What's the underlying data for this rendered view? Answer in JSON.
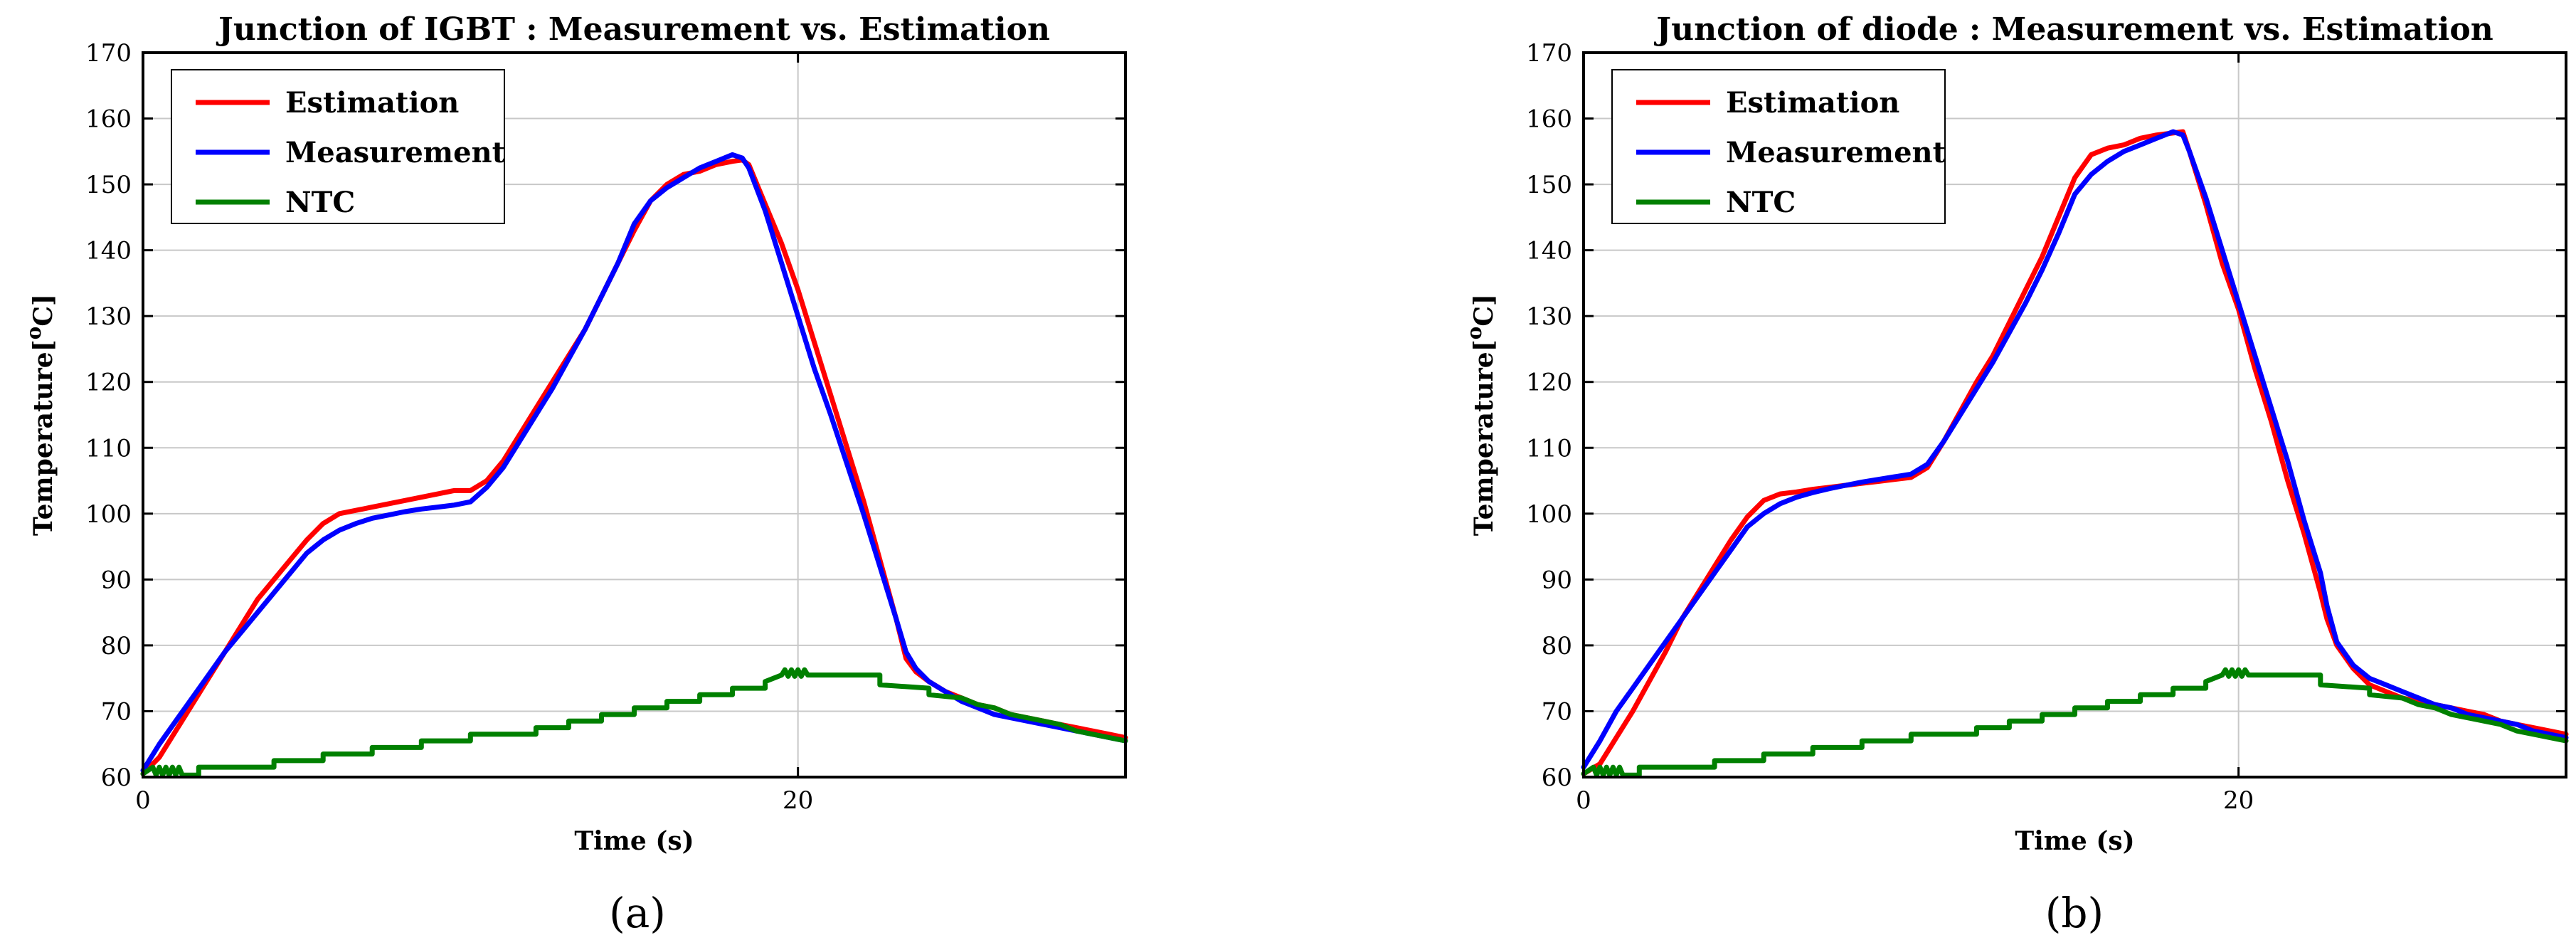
{
  "chart_data": [
    {
      "type": "line",
      "caption": "(a)",
      "title": "Junction of IGBT : Measurement vs. Estimation",
      "xlabel": "Time (s)",
      "ylabel": "Temperature[",
      "ylabel_sup": "o",
      "ylabel_unit": "C]",
      "xlim": [
        0,
        30
      ],
      "ylim": [
        60,
        170
      ],
      "xticks": [
        0,
        20
      ],
      "yticks": [
        60,
        70,
        80,
        90,
        100,
        110,
        120,
        130,
        140,
        150,
        160,
        170
      ],
      "grid": true,
      "legend_position": "top-left",
      "series": [
        {
          "name": "Estimation",
          "color": "#ff0000",
          "x": [
            0,
            0.5,
            1,
            1.5,
            2,
            2.5,
            3,
            3.5,
            4,
            4.5,
            5,
            5.5,
            6,
            6.5,
            7,
            7.5,
            8,
            8.5,
            9,
            9.5,
            10,
            10.5,
            11,
            11.5,
            12,
            12.5,
            13,
            13.5,
            14,
            14.5,
            15,
            15.5,
            16,
            16.5,
            17,
            17.5,
            18,
            18.3,
            18.5,
            19,
            19.5,
            20,
            20.5,
            21,
            21.5,
            22,
            22.5,
            23,
            23.3,
            23.6,
            24,
            24.5,
            25,
            25.5,
            26,
            26.5,
            27,
            27.5,
            28,
            28.5,
            29,
            29.5,
            30
          ],
          "y": [
            60.5,
            63,
            67,
            71,
            75,
            79,
            83,
            87,
            90,
            93,
            96,
            98.5,
            100,
            100.5,
            101,
            101.5,
            102,
            102.5,
            103,
            103.5,
            103.5,
            105,
            108,
            112,
            116,
            120,
            124,
            128,
            133,
            138,
            143,
            147.5,
            150,
            151.5,
            152,
            153,
            153.5,
            153.7,
            153,
            147,
            141,
            134,
            126,
            118,
            110,
            102,
            93,
            84,
            78,
            76,
            74.5,
            73,
            72,
            71,
            70.5,
            69.5,
            69,
            68.5,
            68,
            67.5,
            67,
            66.5,
            66
          ]
        },
        {
          "name": "Measurement",
          "color": "#0000ff",
          "x": [
            0,
            0.5,
            1,
            1.5,
            2,
            2.5,
            3,
            3.5,
            4,
            4.5,
            5,
            5.5,
            6,
            6.5,
            7,
            7.5,
            8,
            8.5,
            9,
            9.5,
            10,
            10.5,
            11,
            11.5,
            12,
            12.5,
            13,
            13.5,
            14,
            14.5,
            15,
            15.5,
            16,
            16.5,
            17,
            17.5,
            18,
            18.3,
            18.5,
            19,
            19.5,
            20,
            20.5,
            21,
            21.5,
            22,
            22.5,
            23,
            23.3,
            23.6,
            24,
            24.5,
            25,
            25.5,
            26,
            26.5,
            27,
            27.5,
            28,
            28.5,
            29,
            29.5,
            30
          ],
          "y": [
            61,
            65,
            68.5,
            72,
            75.5,
            79,
            82,
            85,
            88,
            91,
            94,
            96,
            97.5,
            98.5,
            99.3,
            99.8,
            100.3,
            100.7,
            101,
            101.3,
            101.8,
            104,
            107,
            111,
            115,
            119,
            123.5,
            128,
            133,
            138,
            144,
            147.5,
            149.5,
            151,
            152.5,
            153.5,
            154.5,
            154,
            152.5,
            146,
            138,
            130,
            122,
            115,
            107.5,
            100,
            92,
            84,
            79,
            76.5,
            74.5,
            73,
            71.5,
            70.5,
            69.5,
            69,
            68.5,
            68,
            67.5,
            67,
            66.5,
            66,
            65.5
          ]
        },
        {
          "name": "NTC",
          "color": "#008000",
          "x": [
            0,
            0.3,
            0.4,
            0.5,
            0.6,
            0.7,
            0.8,
            0.9,
            1,
            1.1,
            1.2,
            1.7,
            1.7,
            4,
            4,
            5.5,
            5.5,
            7,
            7,
            8.5,
            8.5,
            10,
            10,
            12,
            12,
            13,
            13,
            14,
            14,
            15,
            15,
            16,
            16,
            17,
            17,
            18,
            18,
            19,
            19,
            19.5,
            19.6,
            19.7,
            19.8,
            19.9,
            20,
            20.1,
            20.2,
            20.3,
            22,
            22.5,
            22.5,
            24,
            24,
            25,
            25.5,
            26,
            26.5,
            27,
            27.5,
            28,
            28.5,
            29,
            29.5,
            30
          ],
          "y": [
            60.5,
            61.5,
            60.3,
            61.5,
            60.3,
            61.5,
            60.3,
            61.5,
            60.3,
            61.5,
            60.3,
            60.3,
            61.5,
            61.5,
            62.5,
            62.5,
            63.5,
            63.5,
            64.5,
            64.5,
            65.5,
            65.5,
            66.5,
            66.5,
            67.5,
            67.5,
            68.5,
            68.5,
            69.5,
            69.5,
            70.5,
            70.5,
            71.5,
            71.5,
            72.5,
            72.5,
            73.5,
            73.5,
            74.5,
            75.5,
            76.3,
            75.3,
            76.3,
            75.3,
            76.3,
            75.3,
            76.3,
            75.5,
            75.5,
            75.5,
            74,
            73.5,
            72.5,
            72,
            71,
            70.5,
            69.5,
            69,
            68.5,
            68,
            67,
            66.5,
            66,
            65.5
          ]
        }
      ]
    },
    {
      "type": "line",
      "caption": "(b)",
      "title": "Junction of diode : Measurement vs. Estimation",
      "xlabel": "Time (s)",
      "ylabel": "Temperature[",
      "ylabel_sup": "o",
      "ylabel_unit": "C]",
      "xlim": [
        0,
        30
      ],
      "ylim": [
        60,
        170
      ],
      "xticks": [
        0,
        20
      ],
      "yticks": [
        60,
        70,
        80,
        90,
        100,
        110,
        120,
        130,
        140,
        150,
        160,
        170
      ],
      "grid": true,
      "legend_position": "top-left",
      "series": [
        {
          "name": "Estimation",
          "color": "#ff0000",
          "x": [
            0,
            0.5,
            1,
            1.5,
            2,
            2.5,
            3,
            3.5,
            4,
            4.5,
            5,
            5.5,
            6,
            6.5,
            7,
            7.5,
            8,
            8.5,
            9,
            9.5,
            10,
            10.5,
            11,
            11.5,
            12,
            12.5,
            13,
            13.5,
            14,
            14.5,
            15,
            15.5,
            16,
            16.5,
            17,
            17.5,
            18,
            18.3,
            18.5,
            19,
            19.5,
            20,
            20.5,
            21,
            21.5,
            22,
            22.5,
            22.7,
            23,
            23.5,
            24,
            24.5,
            25,
            25.5,
            26,
            26.5,
            27,
            27.5,
            28,
            28.5,
            29,
            29.5,
            30
          ],
          "y": [
            60.5,
            62,
            66,
            70,
            74.5,
            79,
            84,
            88,
            92,
            96,
            99.5,
            102,
            103,
            103.3,
            103.7,
            104,
            104.3,
            104.6,
            104.9,
            105.2,
            105.5,
            107,
            111,
            115.5,
            120,
            124,
            129,
            134,
            139,
            145,
            151,
            154.5,
            155.5,
            156,
            157,
            157.5,
            157.8,
            158,
            155,
            147,
            138,
            131,
            122,
            114,
            105,
            97,
            88,
            84,
            80,
            76.5,
            74,
            73,
            72,
            71.5,
            71,
            70.5,
            70,
            69.5,
            68.5,
            68,
            67.5,
            67,
            66.5
          ]
        },
        {
          "name": "Measurement",
          "color": "#0000ff",
          "x": [
            0,
            0.5,
            1,
            1.5,
            2,
            2.5,
            3,
            3.5,
            4,
            4.5,
            5,
            5.5,
            6,
            6.5,
            7,
            7.5,
            8,
            8.5,
            9,
            9.5,
            10,
            10.5,
            11,
            11.5,
            12,
            12.5,
            13,
            13.5,
            14,
            14.5,
            15,
            15.5,
            16,
            16.5,
            17,
            17.5,
            18,
            18.3,
            18.5,
            19,
            19.5,
            20,
            20.5,
            21,
            21.5,
            22,
            22.5,
            22.7,
            23,
            23.5,
            24,
            24.5,
            25,
            25.5,
            26,
            26.5,
            27,
            27.5,
            28,
            28.5,
            29,
            29.5,
            30
          ],
          "y": [
            61.5,
            65.5,
            70,
            73.5,
            77,
            80.5,
            84,
            87.5,
            91,
            94.5,
            98,
            100,
            101.5,
            102.5,
            103.2,
            103.8,
            104.3,
            104.8,
            105.2,
            105.6,
            106,
            107.5,
            111,
            115,
            119,
            123,
            127.5,
            132,
            137,
            142.5,
            148.5,
            151.5,
            153.5,
            155,
            156,
            157,
            158,
            157.5,
            155,
            148,
            140,
            132,
            124,
            116,
            108,
            99,
            91,
            86,
            80.5,
            77,
            75,
            74,
            73,
            72,
            71,
            70.5,
            69.5,
            69,
            68.5,
            68,
            67,
            66.5,
            66
          ]
        },
        {
          "name": "NTC",
          "color": "#008000",
          "x": [
            0,
            0.3,
            0.4,
            0.5,
            0.6,
            0.7,
            0.8,
            0.9,
            1,
            1.1,
            1.2,
            1.7,
            1.7,
            4,
            4,
            5.5,
            5.5,
            7,
            7,
            8.5,
            8.5,
            10,
            10,
            12,
            12,
            13,
            13,
            14,
            14,
            15,
            15,
            16,
            16,
            17,
            17,
            18,
            18,
            19,
            19,
            19.5,
            19.6,
            19.7,
            19.8,
            19.9,
            20,
            20.1,
            20.2,
            20.3,
            22,
            22.5,
            22.5,
            24,
            24,
            25,
            25.5,
            26,
            26.5,
            27,
            27.5,
            28,
            28.5,
            29,
            29.5,
            30
          ],
          "y": [
            60.5,
            61.5,
            60.3,
            61.5,
            60.3,
            61.5,
            60.3,
            61.5,
            60.3,
            61.5,
            60.3,
            60.3,
            61.5,
            61.5,
            62.5,
            62.5,
            63.5,
            63.5,
            64.5,
            64.5,
            65.5,
            65.5,
            66.5,
            66.5,
            67.5,
            67.5,
            68.5,
            68.5,
            69.5,
            69.5,
            70.5,
            70.5,
            71.5,
            71.5,
            72.5,
            72.5,
            73.5,
            73.5,
            74.5,
            75.5,
            76.3,
            75.3,
            76.3,
            75.3,
            76.3,
            75.3,
            76.3,
            75.5,
            75.5,
            75.5,
            74,
            73.5,
            72.5,
            72,
            71,
            70.5,
            69.5,
            69,
            68.5,
            68,
            67,
            66.5,
            66,
            65.5
          ]
        }
      ]
    }
  ]
}
